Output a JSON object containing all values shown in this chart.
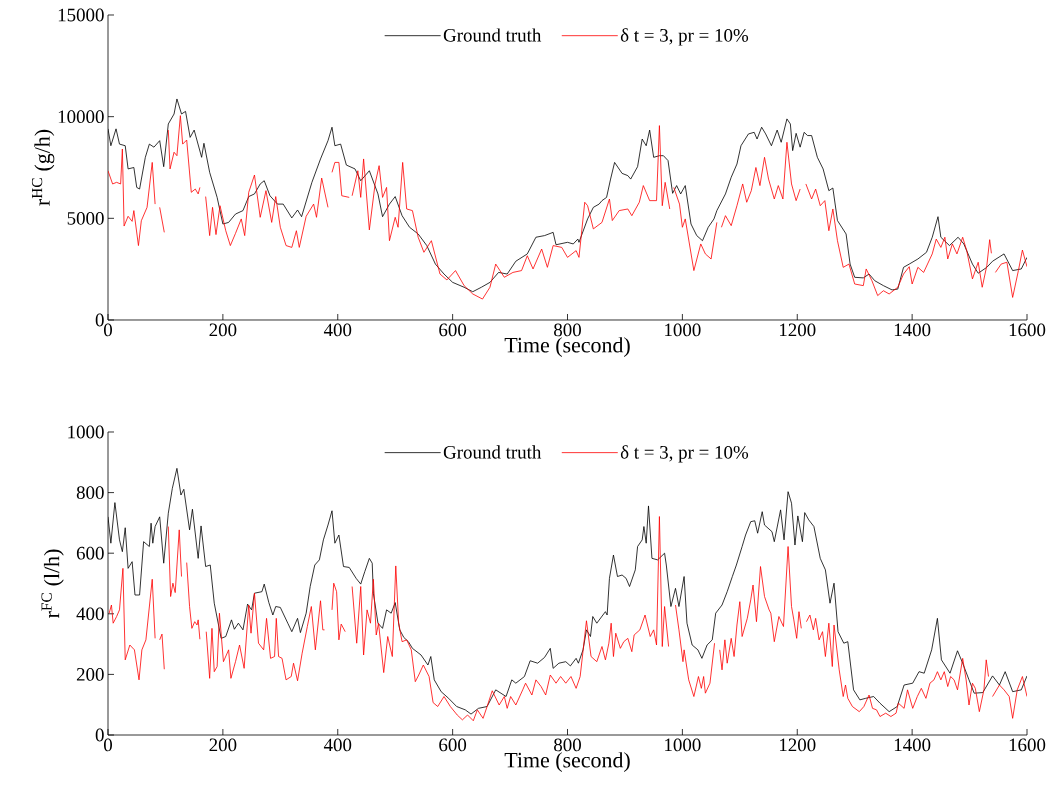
{
  "chart_data": [
    {
      "type": "line",
      "xlabel": "Time  (second)",
      "ylabel": "r$^{HC}$ (g/h)",
      "legend": "top",
      "xlim": [
        0,
        1600
      ],
      "ylim": [
        0,
        15000
      ],
      "xticks": [
        0,
        200,
        400,
        600,
        800,
        1000,
        1200,
        1400,
        1600
      ],
      "yticks": [
        0,
        5000,
        10000,
        15000
      ],
      "series": [
        {
          "name": "Ground truth",
          "color": "#000000",
          "x": [
            0,
            5,
            14,
            20,
            30,
            35,
            45,
            50,
            55,
            65,
            72,
            80,
            90,
            97,
            105,
            115,
            120,
            128,
            135,
            143,
            150,
            163,
            167,
            177,
            190,
            200,
            210,
            222,
            235,
            245,
            255,
            265,
            272,
            282,
            295,
            305,
            320,
            330,
            337,
            355,
            370,
            383,
            390,
            395,
            405,
            415,
            430,
            440,
            455,
            470,
            478,
            490,
            500,
            512,
            525,
            540,
            555,
            570,
            585,
            600,
            620,
            635,
            650,
            665,
            680,
            695,
            710,
            730,
            745,
            760,
            775,
            780,
            800,
            810,
            818,
            820,
            835,
            845,
            855,
            860,
            868,
            875,
            882,
            895,
            905,
            910,
            922,
            930,
            937,
            943,
            950,
            960,
            967,
            975,
            983,
            990,
            997,
            1005,
            1015,
            1025,
            1035,
            1045,
            1055,
            1060,
            1075,
            1085,
            1095,
            1102,
            1115,
            1125,
            1130,
            1138,
            1145,
            1155,
            1165,
            1172,
            1182,
            1188,
            1192,
            1198,
            1205,
            1212,
            1218,
            1225,
            1235,
            1245,
            1255,
            1262,
            1270,
            1285,
            1292,
            1300,
            1315,
            1325,
            1335,
            1350,
            1365,
            1375,
            1385,
            1395,
            1410,
            1425,
            1435,
            1445,
            1450,
            1465,
            1480,
            1490,
            1505,
            1515,
            1530,
            1540,
            1560,
            1575,
            1590,
            1600
          ],
          "values": [
            9400,
            8570,
            9400,
            8650,
            8570,
            7430,
            7500,
            6520,
            6440,
            8000,
            8650,
            8500,
            8820,
            7540,
            9640,
            10130,
            10870,
            10130,
            10260,
            8980,
            9340,
            8000,
            8690,
            7260,
            6030,
            4720,
            4800,
            5210,
            5380,
            6070,
            6200,
            6690,
            6850,
            6110,
            5700,
            5700,
            5020,
            5410,
            5080,
            6770,
            7920,
            8820,
            9480,
            8570,
            8650,
            7620,
            7430,
            6850,
            7340,
            6200,
            5080,
            5700,
            6070,
            5130,
            4560,
            4230,
            3660,
            2750,
            2260,
            1850,
            1610,
            1390,
            1610,
            1850,
            2340,
            2260,
            2890,
            3250,
            4070,
            4150,
            4310,
            3700,
            3820,
            3740,
            3980,
            3820,
            4970,
            5540,
            5700,
            5870,
            6030,
            6930,
            7750,
            7210,
            7100,
            6930,
            7540,
            8900,
            8570,
            9340,
            8000,
            8080,
            8080,
            7840,
            6230,
            6610,
            6200,
            6610,
            4720,
            4150,
            3900,
            4560,
            4970,
            5380,
            6200,
            7020,
            7670,
            8570,
            9150,
            9230,
            8900,
            9480,
            9150,
            8570,
            9340,
            8740,
            9890,
            9640,
            8330,
            9180,
            8500,
            9230,
            9070,
            9070,
            8000,
            7430,
            6360,
            6490,
            4890,
            4230,
            2750,
            2100,
            2070,
            2260,
            1930,
            1690,
            1480,
            1520,
            2590,
            2750,
            3000,
            3330,
            4070,
            5080,
            4070,
            3660,
            4070,
            3740,
            2750,
            2300,
            2590,
            2890,
            3250,
            2430,
            2510,
            3080
          ]
        },
        {
          "name": "δ t = 3, pr = 10%",
          "color": "#ff0000",
          "x": [
            0,
            8,
            15,
            22,
            25,
            28,
            35,
            42,
            45,
            53,
            58,
            68,
            77,
            82,
            86,
            90,
            98,
            101,
            105,
            108,
            115,
            120,
            126,
            130,
            137,
            145,
            152,
            157,
            160,
            165,
            170,
            177,
            182,
            188,
            195,
            205,
            213,
            222,
            232,
            238,
            245,
            255,
            265,
            275,
            285,
            292,
            300,
            310,
            320,
            328,
            333,
            345,
            358,
            363,
            372,
            383,
            386,
            390,
            395,
            402,
            407,
            420,
            422,
            425,
            435,
            440,
            445,
            455,
            465,
            472,
            478,
            485,
            490,
            500,
            505,
            513,
            520,
            530,
            540,
            550,
            563,
            578,
            590,
            605,
            620,
            635,
            652,
            665,
            675,
            690,
            705,
            720,
            730,
            740,
            755,
            765,
            775,
            790,
            800,
            815,
            820,
            830,
            835,
            845,
            860,
            873,
            878,
            890,
            905,
            912,
            925,
            932,
            943,
            955,
            960,
            965,
            970,
            978,
            981,
            985,
            995,
            1000,
            1005,
            1020,
            1032,
            1040,
            1050,
            1060,
            1064,
            1068,
            1075,
            1085,
            1095,
            1105,
            1112,
            1120,
            1128,
            1135,
            1143,
            1150,
            1160,
            1167,
            1175,
            1182,
            1190,
            1198,
            1205,
            1210,
            1215,
            1225,
            1232,
            1240,
            1248,
            1255,
            1262,
            1270,
            1280,
            1290,
            1300,
            1315,
            1320,
            1330,
            1340,
            1350,
            1360,
            1375,
            1385,
            1395,
            1400,
            1410,
            1420,
            1435,
            1442,
            1450,
            1457,
            1462,
            1470,
            1478,
            1488,
            1495,
            1505,
            1515,
            1522,
            1530,
            1535,
            1538,
            1541,
            1545,
            1555,
            1565,
            1575,
            1585,
            1592,
            1600
          ],
          "values": [
            7340,
            6690,
            6770,
            6690,
            8410,
            4620,
            5100,
            4850,
            5380,
            3660,
            4880,
            5540,
            7750,
            5700,
            null,
            5540,
            4310,
            null,
            9340,
            7430,
            8250,
            8080,
            10050,
            8650,
            8850,
            6280,
            6440,
            6200,
            6520,
            null,
            6070,
            4150,
            5540,
            4200,
            5620,
            4390,
            3660,
            4260,
            4970,
            4150,
            6280,
            7130,
            5050,
            6360,
            4800,
            6070,
            4560,
            3660,
            3570,
            4390,
            3570,
            5100,
            5700,
            5050,
            6980,
            5540,
            null,
            7260,
            7750,
            7750,
            6110,
            6030,
            null,
            6110,
            7340,
            6030,
            7920,
            4430,
            6690,
            7590,
            6030,
            6520,
            3900,
            5050,
            4560,
            7750,
            5460,
            5380,
            4070,
            3330,
            3900,
            2260,
            1970,
            2430,
            1690,
            1280,
            1030,
            1610,
            2750,
            2100,
            2340,
            2430,
            3160,
            2510,
            3490,
            2590,
            3660,
            3570,
            3080,
            3410,
            3080,
            5790,
            5620,
            4480,
            4800,
            5950,
            4890,
            5380,
            5460,
            5130,
            5790,
            6610,
            5870,
            5870,
            9560,
            5620,
            6770,
            5460,
            null,
            6520,
            5700,
            4560,
            4970,
            2430,
            3740,
            3250,
            3000,
            4800,
            null,
            4560,
            5130,
            4640,
            5620,
            6690,
            5790,
            6360,
            7500,
            6610,
            8000,
            6930,
            5950,
            6610,
            5950,
            8740,
            6690,
            5870,
            6440,
            null,
            6690,
            5950,
            6440,
            5620,
            5870,
            4390,
            5460,
            3900,
            2590,
            2750,
            1770,
            1690,
            2510,
            1930,
            1200,
            1440,
            1280,
            1610,
            2260,
            2620,
            1770,
            2590,
            2340,
            3250,
            3980,
            3570,
            4070,
            3000,
            3740,
            3250,
            4070,
            3410,
            2020,
            2840,
            1610,
            2670,
            3950,
            3280,
            null,
            2340,
            2750,
            2840,
            1110,
            2430,
            3440,
            2620
          ]
        }
      ]
    },
    {
      "type": "line",
      "xlabel": "Time  (second)",
      "ylabel": "r$^{FC}$ (l/h)",
      "legend": "top",
      "xlim": [
        0,
        1600
      ],
      "ylim": [
        0,
        1000
      ],
      "xticks": [
        0,
        200,
        400,
        600,
        800,
        1000,
        1200,
        1400,
        1600
      ],
      "yticks": [
        0,
        200,
        400,
        600,
        800,
        1000
      ],
      "series": [
        {
          "name": "Ground truth",
          "color": "#000000",
          "x": [
            0,
            5,
            12,
            20,
            25,
            30,
            35,
            42,
            47,
            55,
            62,
            72,
            75,
            78,
            82,
            90,
            97,
            105,
            112,
            120,
            127,
            132,
            142,
            147,
            157,
            162,
            170,
            178,
            185,
            197,
            205,
            215,
            220,
            227,
            235,
            243,
            250,
            255,
            268,
            272,
            280,
            287,
            292,
            300,
            313,
            320,
            330,
            335,
            345,
            352,
            360,
            368,
            375,
            383,
            390,
            395,
            402,
            410,
            420,
            432,
            440,
            447,
            455,
            460,
            462,
            470,
            478,
            485,
            493,
            500,
            508,
            515,
            523,
            530,
            545,
            557,
            562,
            568,
            580,
            593,
            607,
            622,
            632,
            645,
            660,
            675,
            693,
            703,
            710,
            725,
            735,
            748,
            760,
            770,
            775,
            785,
            797,
            805,
            815,
            819,
            827,
            833,
            840,
            844,
            851,
            866,
            869,
            873,
            880,
            887,
            895,
            902,
            908,
            918,
            922,
            930,
            933,
            937,
            941,
            947,
            957,
            969,
            972,
            980,
            988,
            994,
            1003,
            1008,
            1017,
            1027,
            1034,
            1043,
            1052,
            1058,
            1069,
            1078,
            1087,
            1094,
            1104,
            1110,
            1119,
            1126,
            1131,
            1139,
            1143,
            1156,
            1160,
            1171,
            1177,
            1184,
            1190,
            1196,
            1201,
            1209,
            1213,
            1220,
            1229,
            1240,
            1249,
            1257,
            1264,
            1271,
            1281,
            1288,
            1298,
            1309,
            1319,
            1333,
            1344,
            1360,
            1374,
            1386,
            1401,
            1412,
            1421,
            1434,
            1444,
            1451,
            1466,
            1479,
            1488,
            1499,
            1508,
            1523,
            1540,
            1552,
            1562,
            1575,
            1590,
            1600
          ],
          "values": [
            720,
            633,
            767,
            644,
            605,
            684,
            550,
            572,
            462,
            462,
            638,
            622,
            699,
            633,
            688,
            720,
            567,
            732,
            814,
            880,
            792,
            811,
            677,
            745,
            583,
            690,
            556,
            561,
            435,
            319,
            325,
            380,
            349,
            369,
            347,
            432,
            413,
            468,
            473,
            498,
            437,
            396,
            424,
            421,
            369,
            341,
            385,
            338,
            402,
            490,
            561,
            578,
            644,
            693,
            740,
            633,
            660,
            556,
            553,
            517,
            498,
            539,
            583,
            567,
            468,
            369,
            352,
            413,
            402,
            437,
            347,
            322,
            308,
            286,
            264,
            231,
            259,
            182,
            143,
            121,
            94,
            83,
            69,
            88,
            94,
            149,
            127,
            182,
            171,
            193,
            245,
            237,
            256,
            286,
            220,
            237,
            242,
            228,
            253,
            237,
            281,
            347,
            325,
            391,
            369,
            407,
            396,
            517,
            594,
            523,
            528,
            517,
            490,
            545,
            622,
            644,
            688,
            633,
            756,
            583,
            578,
            600,
            561,
            424,
            484,
            424,
            523,
            369,
            297,
            281,
            253,
            297,
            314,
            402,
            429,
            473,
            523,
            561,
            622,
            660,
            704,
            707,
            666,
            737,
            693,
            671,
            638,
            743,
            644,
            803,
            765,
            627,
            723,
            638,
            734,
            710,
            688,
            583,
            545,
            435,
            501,
            341,
            303,
            308,
            149,
            116,
            121,
            127,
            105,
            77,
            94,
            165,
            171,
            209,
            204,
            281,
            385,
            248,
            204,
            278,
            237,
            182,
            138,
            140,
            195,
            165,
            209,
            143,
            149,
            195
          ]
        },
        {
          "name": "δ t = 3, pr = 10%",
          "color": "#ff0000",
          "x": [
            2,
            6,
            9,
            15,
            20,
            26,
            30,
            38,
            46,
            54,
            59,
            66,
            77,
            82,
            86,
            90,
            94,
            98,
            101,
            105,
            109,
            113,
            117,
            124,
            128,
            132,
            137,
            142,
            146,
            151,
            155,
            157,
            160,
            165,
            171,
            177,
            181,
            185,
            190,
            194,
            201,
            210,
            214,
            222,
            229,
            237,
            245,
            249,
            255,
            262,
            271,
            276,
            283,
            290,
            293,
            297,
            303,
            310,
            319,
            323,
            330,
            338,
            347,
            354,
            361,
            370,
            374,
            377,
            382,
            390,
            393,
            398,
            402,
            406,
            413,
            418,
            425,
            433,
            440,
            445,
            451,
            457,
            462,
            467,
            471,
            480,
            487,
            495,
            501,
            506,
            512,
            520,
            528,
            535,
            541,
            549,
            559,
            566,
            574,
            585,
            596,
            608,
            617,
            626,
            636,
            643,
            653,
            660,
            669,
            681,
            690,
            695,
            701,
            710,
            722,
            727,
            738,
            745,
            754,
            762,
            770,
            780,
            788,
            797,
            806,
            815,
            822,
            833,
            841,
            851,
            860,
            866,
            872,
            876,
            880,
            884,
            892,
            898,
            905,
            912,
            916,
            926,
            935,
            944,
            950,
            955,
            960,
            965,
            969,
            976,
            980,
            988,
            994,
            1001,
            1003,
            1011,
            1020,
            1028,
            1033,
            1037,
            1040,
            1048,
            1056,
            1060,
            1065,
            1069,
            1074,
            1078,
            1085,
            1090,
            1095,
            1100,
            1104,
            1113,
            1119,
            1123,
            1129,
            1136,
            1143,
            1151,
            1154,
            1160,
            1168,
            1176,
            1184,
            1190,
            1194,
            1199,
            1203,
            1207,
            1211,
            1216,
            1222,
            1228,
            1232,
            1238,
            1244,
            1249,
            1255,
            1261,
            1264,
            1273,
            1280,
            1284,
            1288,
            1296,
            1308,
            1316,
            1325,
            1331,
            1338,
            1344,
            1354,
            1363,
            1372,
            1376,
            1386,
            1392,
            1401,
            1409,
            1416,
            1424,
            1431,
            1438,
            1444,
            1450,
            1456,
            1462,
            1467,
            1473,
            1479,
            1488,
            1494,
            1499,
            1505,
            1510,
            1517,
            1525,
            1529,
            1533,
            1536,
            1540,
            1552,
            1560,
            1569,
            1575,
            1583,
            1592,
            1600
          ],
          "values": [
            402,
            429,
            369,
            391,
            413,
            550,
            248,
            297,
            281,
            182,
            281,
            314,
            514,
            319,
            null,
            314,
            333,
            217,
            null,
            688,
            457,
            501,
            470,
            677,
            523,
            null,
            569,
            424,
            352,
            374,
            363,
            380,
            316,
            null,
            341,
            187,
            352,
            209,
            226,
            402,
            242,
            281,
            187,
            242,
            297,
            220,
            429,
            336,
            468,
            303,
            281,
            385,
            253,
            259,
            385,
            259,
            253,
            182,
            193,
            237,
            179,
            270,
            358,
            424,
            281,
            443,
            347,
            347,
            null,
            413,
            501,
            473,
            314,
            366,
            341,
            null,
            490,
            303,
            490,
            264,
            413,
            369,
            514,
            330,
            369,
            206,
            325,
            259,
            558,
            369,
            308,
            314,
            281,
            176,
            198,
            231,
            193,
            107,
            94,
            127,
            94,
            66,
            50,
            66,
            47,
            83,
            55,
            94,
            146,
            99,
            127,
            88,
            127,
            99,
            149,
            171,
            132,
            182,
            160,
            132,
            198,
            171,
            193,
            171,
            193,
            154,
            193,
            377,
            259,
            242,
            292,
            248,
            303,
            369,
            259,
            336,
            286,
            308,
            319,
            275,
            330,
            347,
            396,
            325,
            347,
            297,
            721,
            292,
            424,
            292,
            null,
            429,
            347,
            242,
            281,
            182,
            127,
            193,
            154,
            193,
            138,
            171,
            303,
            null,
            281,
            215,
            314,
            237,
            319,
            259,
            363,
            440,
            325,
            385,
            446,
            495,
            374,
            556,
            457,
            413,
            402,
            308,
            391,
            358,
            622,
            424,
            380,
            319,
            407,
            352,
            null,
            374,
            396,
            347,
            385,
            314,
            341,
            259,
            369,
            226,
            363,
            215,
            127,
            165,
            121,
            94,
            77,
            94,
            132,
            88,
            83,
            61,
            72,
            61,
            72,
            105,
            88,
            149,
            88,
            127,
            154,
            121,
            171,
            182,
            209,
            182,
            209,
            160,
            193,
            182,
            149,
            253,
            182,
            99,
            171,
            154,
            77,
            149,
            248,
            193,
            null,
            127,
            165,
            149,
            127,
            55,
            149,
            193,
            127
          ]
        }
      ]
    }
  ]
}
